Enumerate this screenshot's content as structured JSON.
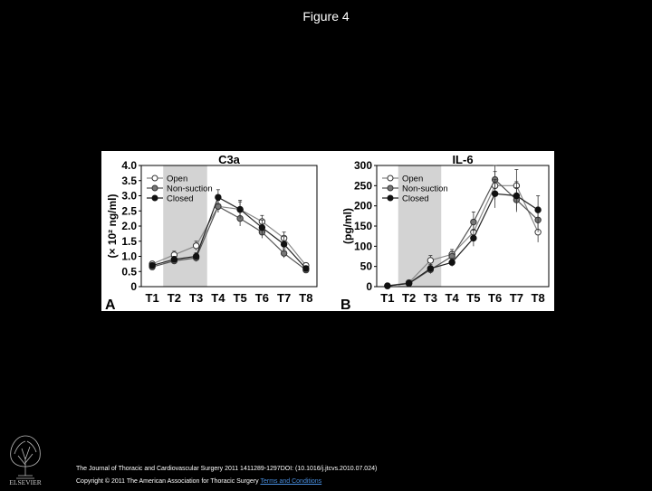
{
  "slide": {
    "title": "Figure 4"
  },
  "chart_data": [
    {
      "type": "line",
      "title": "C3a",
      "panel_label": "A",
      "ylabel": "(× 10² ng/ml)",
      "xlabel": "",
      "categories": [
        "T1",
        "T2",
        "T3",
        "T4",
        "T5",
        "T6",
        "T7",
        "T8"
      ],
      "ylim": [
        0,
        4.0
      ],
      "yticks": [
        "0",
        "0.5",
        "1.0",
        "1.5",
        "2.0",
        "2.5",
        "3.0",
        "3.5",
        "4.0"
      ],
      "shaded_range": [
        "T2",
        "T3"
      ],
      "legend_position": "top-left",
      "series": [
        {
          "name": "Open",
          "marker": "open-circle",
          "values": [
            0.75,
            1.05,
            1.35,
            2.65,
            2.55,
            2.15,
            1.6,
            0.7
          ],
          "errors": [
            0.08,
            0.12,
            0.15,
            0.2,
            0.25,
            0.2,
            0.2,
            0.08
          ]
        },
        {
          "name": "Non-suction",
          "marker": "gray-circle",
          "values": [
            0.65,
            0.85,
            0.95,
            2.65,
            2.25,
            1.8,
            1.1,
            0.55
          ],
          "errors": [
            0.07,
            0.1,
            0.12,
            0.2,
            0.25,
            0.2,
            0.15,
            0.06
          ]
        },
        {
          "name": "Closed",
          "marker": "black-circle",
          "values": [
            0.7,
            0.9,
            1.0,
            2.95,
            2.55,
            1.95,
            1.4,
            0.6
          ],
          "errors": [
            0.07,
            0.1,
            0.12,
            0.25,
            0.3,
            0.25,
            0.25,
            0.07
          ]
        }
      ]
    },
    {
      "type": "line",
      "title": "IL-6",
      "panel_label": "B",
      "ylabel": "(pg/ml)",
      "xlabel": "",
      "categories": [
        "T1",
        "T2",
        "T3",
        "T4",
        "T5",
        "T6",
        "T7",
        "T8"
      ],
      "ylim": [
        0,
        300
      ],
      "yticks": [
        "0",
        "50",
        "100",
        "150",
        "200",
        "250",
        "300"
      ],
      "shaded_range": [
        "T2",
        "T3"
      ],
      "legend_position": "top-left",
      "series": [
        {
          "name": "Open",
          "marker": "open-circle",
          "values": [
            2,
            10,
            65,
            80,
            135,
            250,
            250,
            135
          ],
          "errors": [
            2,
            4,
            12,
            12,
            20,
            35,
            40,
            25
          ]
        },
        {
          "name": "Non-suction",
          "marker": "gray-circle",
          "values": [
            2,
            8,
            42,
            75,
            160,
            265,
            215,
            165
          ],
          "errors": [
            2,
            3,
            10,
            12,
            25,
            35,
            30,
            30
          ]
        },
        {
          "name": "Closed",
          "marker": "black-circle",
          "values": [
            2,
            8,
            45,
            60,
            120,
            230,
            225,
            190
          ],
          "errors": [
            2,
            3,
            10,
            10,
            20,
            35,
            35,
            35
          ]
        }
      ]
    }
  ],
  "footer": {
    "journal": "The Journal of Thoracic and Cardiovascular Surgery 2011 1411289-1297DOI: (10.1016/j.jtcvs.2010.07.024)",
    "copyright": "Copyright © 2011 The American Association for Thoracic Surgery",
    "terms_link": "Terms and Conditions"
  },
  "logo": {
    "icon": "elsevier-tree-icon",
    "text": "ELSEVIER"
  }
}
